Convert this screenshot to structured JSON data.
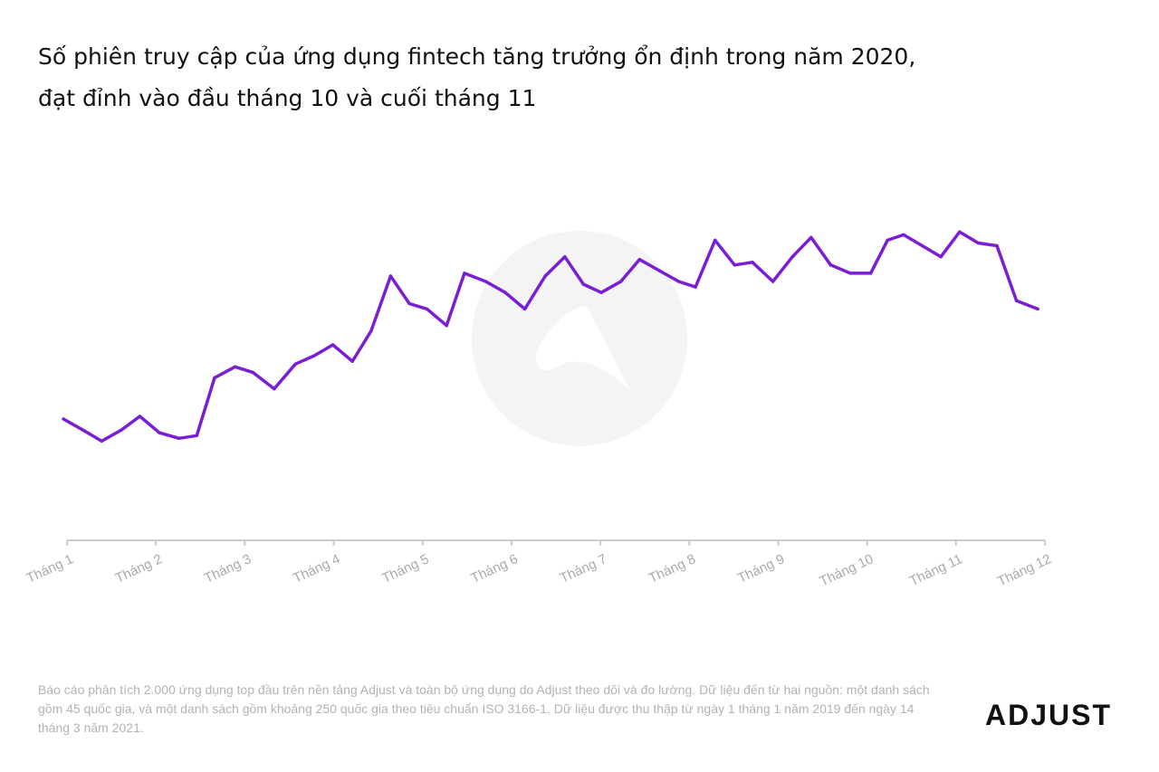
{
  "title_lines": [
    "Số phiên truy cập của ứng dụng fintech tăng trưởng ổn định trong năm 2020,",
    "đạt đỉnh vào đầu tháng 10 và cuối tháng 11"
  ],
  "footnote": "Báo cáo phân tích 2.000 ứng dụng top đầu trên nền tảng Adjust và toàn bộ ứng dụng do Adjust theo dõi và đo lường. Dữ liệu đến từ hai nguồn: một danh sách gồm 45 quốc gia, và một danh sách gồm khoảng 250 quốc gia theo tiêu chuẩn ISO 3166-1. Dữ liệu được thu thập từ ngày 1 tháng 1 năm 2019 đến ngày 14 tháng 3 năm 2021.",
  "logo": {
    "text": "ADJUST"
  },
  "colors": {
    "line": "#7a1ed6",
    "axis": "#cccccc",
    "tick_label": "#aaaaaa",
    "watermark": "#f4f4f4"
  },
  "chart_data": {
    "type": "line",
    "title": "Số phiên truy cập của ứng dụng fintech tăng trưởng ổn định trong năm 2020, đạt đỉnh vào đầu tháng 10 và cuối tháng 11",
    "xlabel": "",
    "ylabel": "",
    "categories": [
      "Tháng 1",
      "Tháng 2",
      "Tháng 3",
      "Tháng 4",
      "Tháng 5",
      "Tháng 6",
      "Tháng 7",
      "Tháng 8",
      "Tháng 9",
      "Tháng 10",
      "Tháng 11",
      "Tháng 12"
    ],
    "x_range": [
      1,
      12
    ],
    "ylim": [
      0,
      100
    ],
    "grid": false,
    "y_axis_visible": false,
    "legend": "none",
    "series": [
      {
        "x": [
          0.96,
          1.18,
          1.39,
          1.61,
          1.82,
          2.04,
          2.26,
          2.46,
          2.66,
          2.89,
          3.09,
          3.33,
          3.57,
          3.78,
          3.99,
          4.21,
          4.42,
          4.64,
          4.85,
          5.05,
          5.27,
          5.47,
          5.71,
          5.93,
          6.15,
          6.38,
          6.6,
          6.81,
          7.01,
          7.23,
          7.44,
          7.66,
          7.88,
          8.07,
          8.29,
          8.51,
          8.71,
          8.94,
          9.16,
          9.37,
          9.59,
          9.81,
          10.04,
          10.23,
          10.41,
          10.62,
          10.83,
          11.04,
          11.25,
          11.46,
          11.68,
          11.92
        ],
        "y": [
          24,
          20,
          16,
          20,
          25,
          19,
          17,
          18,
          39,
          43,
          41,
          35,
          44,
          47,
          51,
          45,
          56,
          76,
          66,
          64,
          58,
          77,
          74,
          70,
          64,
          76,
          83,
          73,
          70,
          74,
          82,
          78,
          74,
          72,
          89,
          80,
          81,
          74,
          83,
          90,
          80,
          77,
          77,
          89,
          91,
          87,
          83,
          92,
          88,
          87,
          67,
          64
        ]
      }
    ]
  }
}
